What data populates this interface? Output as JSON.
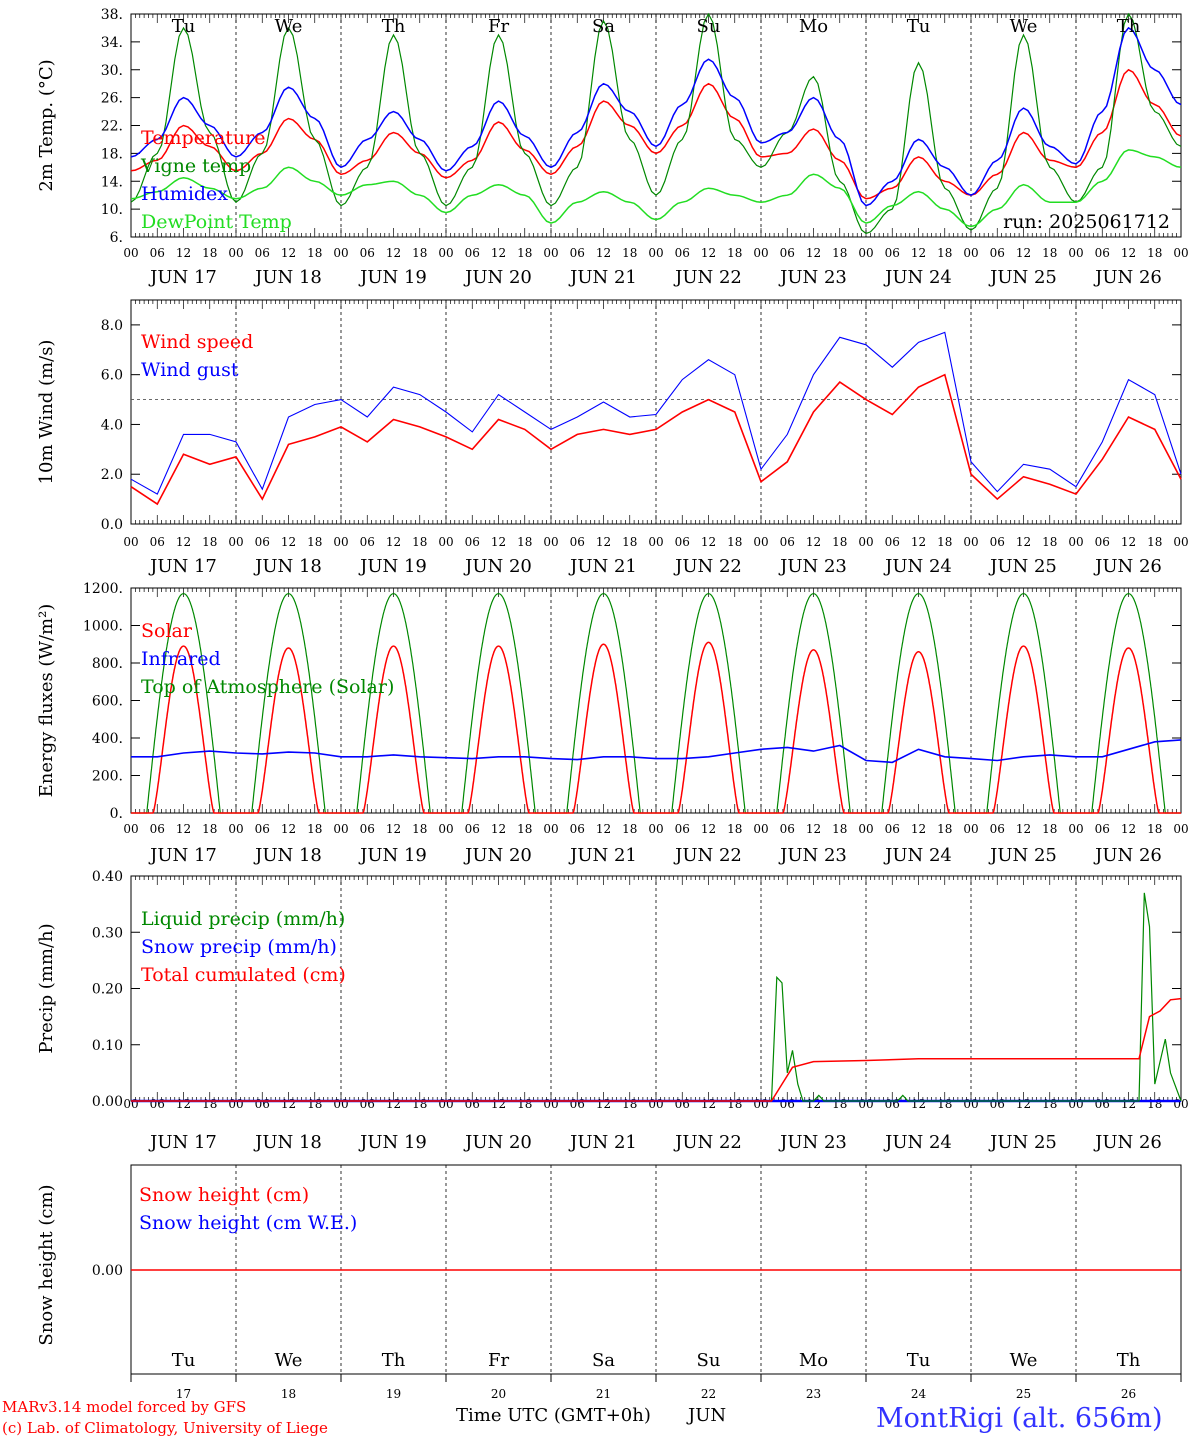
{
  "colors": {
    "red": "#ff0000",
    "green": "#008800",
    "blue": "#0000ff",
    "lightgreen": "#22dd22",
    "dark_red": "#dd0000"
  },
  "x_axis": {
    "hours": [
      "00",
      "06",
      "12",
      "18"
    ],
    "dates": [
      "JUN 17",
      "JUN 18",
      "JUN 19",
      "JUN 20",
      "JUN 21",
      "JUN 22",
      "JUN 23",
      "JUN 24",
      "JUN 25",
      "JUN 26"
    ],
    "weekdays": [
      "Tu",
      "We",
      "Th",
      "Fr",
      "Sa",
      "Su",
      "Mo",
      "Tu",
      "We",
      "Th"
    ],
    "weekend_days": [
      "Sa",
      "Su"
    ],
    "day_numbers": [
      "17",
      "18",
      "19",
      "20",
      "21",
      "22",
      "23",
      "24",
      "25",
      "26"
    ],
    "label": "Time UTC (GMT+0h)",
    "month": "JUN"
  },
  "footer": {
    "model": "MARv3.14 model forced by GFS",
    "copyright": "(c) Lab. of Climatology, University of Liege",
    "station": "MontRigi (alt. 656m)"
  },
  "chart_data": [
    {
      "type": "line",
      "ylabel": "2m Temp. (°C)",
      "ylim": [
        6,
        38
      ],
      "yticks": [
        "6.",
        "10.",
        "14.",
        "18.",
        "22.",
        "26.",
        "30.",
        "34.",
        "38."
      ],
      "run_label": "run: 2025061712",
      "x_days": [
        0,
        0.25,
        0.5,
        0.75,
        1,
        1.25,
        1.5,
        1.75,
        2,
        2.25,
        2.5,
        2.75,
        3,
        3.25,
        3.5,
        3.75,
        4,
        4.25,
        4.5,
        4.75,
        5,
        5.25,
        5.5,
        5.75,
        6,
        6.25,
        6.5,
        6.75,
        7,
        7.25,
        7.5,
        7.75,
        8,
        8.25,
        8.5,
        8.75,
        9,
        9.25,
        9.5,
        9.75,
        10
      ],
      "series": [
        {
          "name": "Temperature",
          "color": "red",
          "values": [
            15.5,
            17,
            22,
            19,
            15.5,
            18,
            23,
            20,
            15,
            17,
            21,
            18,
            14.5,
            17,
            22.5,
            18.5,
            15,
            19,
            25.5,
            22,
            18,
            22,
            28,
            23,
            17.5,
            18,
            21.5,
            17,
            11.5,
            13,
            17.5,
            14,
            12,
            15,
            21,
            17,
            16,
            21,
            30,
            25,
            20.5
          ]
        },
        {
          "name": "Vigne temp",
          "color": "green",
          "values": [
            11,
            18,
            36,
            21,
            11,
            18,
            36,
            20,
            10.5,
            16,
            35,
            18,
            10.5,
            16,
            35,
            18,
            10.5,
            16,
            37,
            20,
            12,
            20,
            38,
            20,
            16,
            21,
            29,
            14,
            6.5,
            10,
            31,
            13,
            7,
            13,
            35,
            16,
            11,
            16,
            38,
            24,
            19
          ]
        },
        {
          "name": "Humidex",
          "color": "blue",
          "values": [
            17.5,
            20,
            26,
            22,
            17.5,
            21,
            27.5,
            23,
            16,
            20,
            24,
            20,
            15.5,
            19,
            25.5,
            20.5,
            16,
            21,
            28,
            24,
            19,
            25,
            31.5,
            26,
            19.5,
            21,
            26,
            20,
            10.5,
            14,
            20,
            16,
            12,
            17,
            24.5,
            19,
            16.5,
            24,
            36,
            30,
            25
          ]
        },
        {
          "name": "DewPoint Temp",
          "color": "lightgreen",
          "values": [
            11.5,
            12.5,
            14.5,
            13,
            11.5,
            13,
            16,
            14,
            12,
            13.5,
            14,
            12,
            9.5,
            12,
            13.5,
            12,
            8,
            11,
            12.5,
            11,
            8.5,
            11,
            13,
            12,
            11,
            12,
            15,
            13,
            8,
            10.5,
            12.5,
            10,
            7.5,
            10,
            13.5,
            11,
            11,
            14,
            18.5,
            17.5,
            16
          ]
        }
      ]
    },
    {
      "type": "line",
      "ylabel": "10m Wind (m/s)",
      "ylim": [
        0,
        9
      ],
      "yticks": [
        "0.0",
        "2.0",
        "4.0",
        "6.0",
        "8.0"
      ],
      "reference_line": 5,
      "x_days": [
        0,
        0.25,
        0.5,
        0.75,
        1,
        1.25,
        1.5,
        1.75,
        2,
        2.25,
        2.5,
        2.75,
        3,
        3.25,
        3.5,
        3.75,
        4,
        4.25,
        4.5,
        4.75,
        5,
        5.25,
        5.5,
        5.75,
        6,
        6.25,
        6.5,
        6.75,
        7,
        7.25,
        7.5,
        7.75,
        8,
        8.25,
        8.5,
        8.75,
        9,
        9.25,
        9.5,
        9.75,
        10
      ],
      "series": [
        {
          "name": "Wind speed",
          "color": "red",
          "values": [
            1.5,
            0.8,
            2.8,
            2.4,
            2.7,
            1.0,
            3.2,
            3.5,
            3.9,
            3.3,
            4.2,
            3.9,
            3.5,
            3.0,
            4.2,
            3.8,
            3.0,
            3.6,
            3.8,
            3.6,
            3.8,
            4.5,
            5.0,
            4.5,
            1.7,
            2.5,
            4.5,
            5.7,
            5.0,
            4.4,
            5.5,
            6.0,
            2.0,
            1.0,
            1.9,
            1.6,
            1.2,
            2.6,
            4.3,
            3.8,
            1.8
          ]
        },
        {
          "name": "Wind gust",
          "color": "blue",
          "values": [
            1.8,
            1.2,
            3.6,
            3.6,
            3.3,
            1.4,
            4.3,
            4.8,
            5.0,
            4.3,
            5.5,
            5.2,
            4.5,
            3.7,
            5.2,
            4.5,
            3.8,
            4.3,
            4.9,
            4.3,
            4.4,
            5.8,
            6.6,
            6.0,
            2.2,
            3.6,
            6.0,
            7.5,
            7.2,
            6.3,
            7.3,
            7.7,
            2.5,
            1.3,
            2.4,
            2.2,
            1.5,
            3.3,
            5.8,
            5.2,
            2.0
          ]
        }
      ]
    },
    {
      "type": "line",
      "ylabel": "Energy fluxes (W/m²)",
      "ylim": [
        0,
        1200
      ],
      "yticks": [
        "0.",
        "200.",
        "400.",
        "600.",
        "800.",
        "1000.",
        "1200."
      ],
      "x_days": [
        0,
        0.25,
        0.5,
        0.75,
        1,
        1.25,
        1.5,
        1.75,
        2,
        2.25,
        2.5,
        2.75,
        3,
        3.25,
        3.5,
        3.75,
        4,
        4.25,
        4.5,
        4.75,
        5,
        5.25,
        5.5,
        5.75,
        6,
        6.25,
        6.5,
        6.75,
        7,
        7.25,
        7.5,
        7.75,
        8,
        8.25,
        8.5,
        8.75,
        9,
        9.25,
        9.5,
        9.75,
        10
      ],
      "series": [
        {
          "name": "Solar",
          "color": "red",
          "peaks": [
            890,
            880,
            890,
            890,
            900,
            910,
            870,
            860,
            890,
            880
          ]
        },
        {
          "name": "Infrared",
          "color": "blue",
          "values": [
            300,
            300,
            320,
            330,
            320,
            315,
            325,
            320,
            300,
            300,
            310,
            300,
            295,
            290,
            300,
            300,
            290,
            285,
            300,
            300,
            290,
            290,
            300,
            320,
            340,
            350,
            330,
            360,
            280,
            270,
            340,
            300,
            290,
            280,
            300,
            310,
            300,
            300,
            340,
            380,
            390
          ]
        },
        {
          "name": "Top of Atmosphere (Solar)",
          "color": "green",
          "peak": 1170
        }
      ]
    },
    {
      "type": "line",
      "ylabel": "Precip (mm/h)",
      "ylim": [
        0,
        0.4
      ],
      "yticks": [
        "0.00",
        "0.10",
        "0.20",
        "0.30",
        "0.40"
      ],
      "series": [
        {
          "name": "Liquid precip (mm/h)",
          "color": "green",
          "points": [
            [
              0,
              0
            ],
            [
              6.1,
              0
            ],
            [
              6.15,
              0.22
            ],
            [
              6.2,
              0.21
            ],
            [
              6.25,
              0.05
            ],
            [
              6.3,
              0.09
            ],
            [
              6.35,
              0.03
            ],
            [
              6.4,
              0
            ],
            [
              6.5,
              0
            ],
            [
              6.55,
              0.01
            ],
            [
              6.6,
              0
            ],
            [
              7.3,
              0
            ],
            [
              7.35,
              0.01
            ],
            [
              7.4,
              0
            ],
            [
              9.6,
              0
            ],
            [
              9.65,
              0.37
            ],
            [
              9.7,
              0.31
            ],
            [
              9.75,
              0.03
            ],
            [
              9.85,
              0.11
            ],
            [
              9.9,
              0.05
            ],
            [
              10,
              0
            ]
          ]
        },
        {
          "name": "Snow precip (mm/h)",
          "color": "blue",
          "points": [
            [
              0,
              0
            ],
            [
              10,
              0
            ]
          ]
        },
        {
          "name": "Total cumulated (cm)",
          "color": "red",
          "points": [
            [
              0,
              0
            ],
            [
              6.1,
              0
            ],
            [
              6.2,
              0.03
            ],
            [
              6.3,
              0.06
            ],
            [
              6.5,
              0.07
            ],
            [
              7.0,
              0.072
            ],
            [
              7.5,
              0.075
            ],
            [
              9.6,
              0.075
            ],
            [
              9.7,
              0.15
            ],
            [
              9.8,
              0.16
            ],
            [
              9.9,
              0.18
            ],
            [
              10,
              0.182
            ]
          ]
        }
      ]
    },
    {
      "type": "line",
      "ylabel": "Snow height (cm)",
      "yticks": [
        "0.00"
      ],
      "series": [
        {
          "name": "Snow height (cm)",
          "color": "red",
          "points": [
            [
              0,
              0
            ],
            [
              10,
              0
            ]
          ]
        },
        {
          "name": "Snow height (cm W.E.)",
          "color": "blue",
          "points": [
            [
              0,
              0
            ],
            [
              10,
              0
            ]
          ]
        }
      ]
    }
  ]
}
